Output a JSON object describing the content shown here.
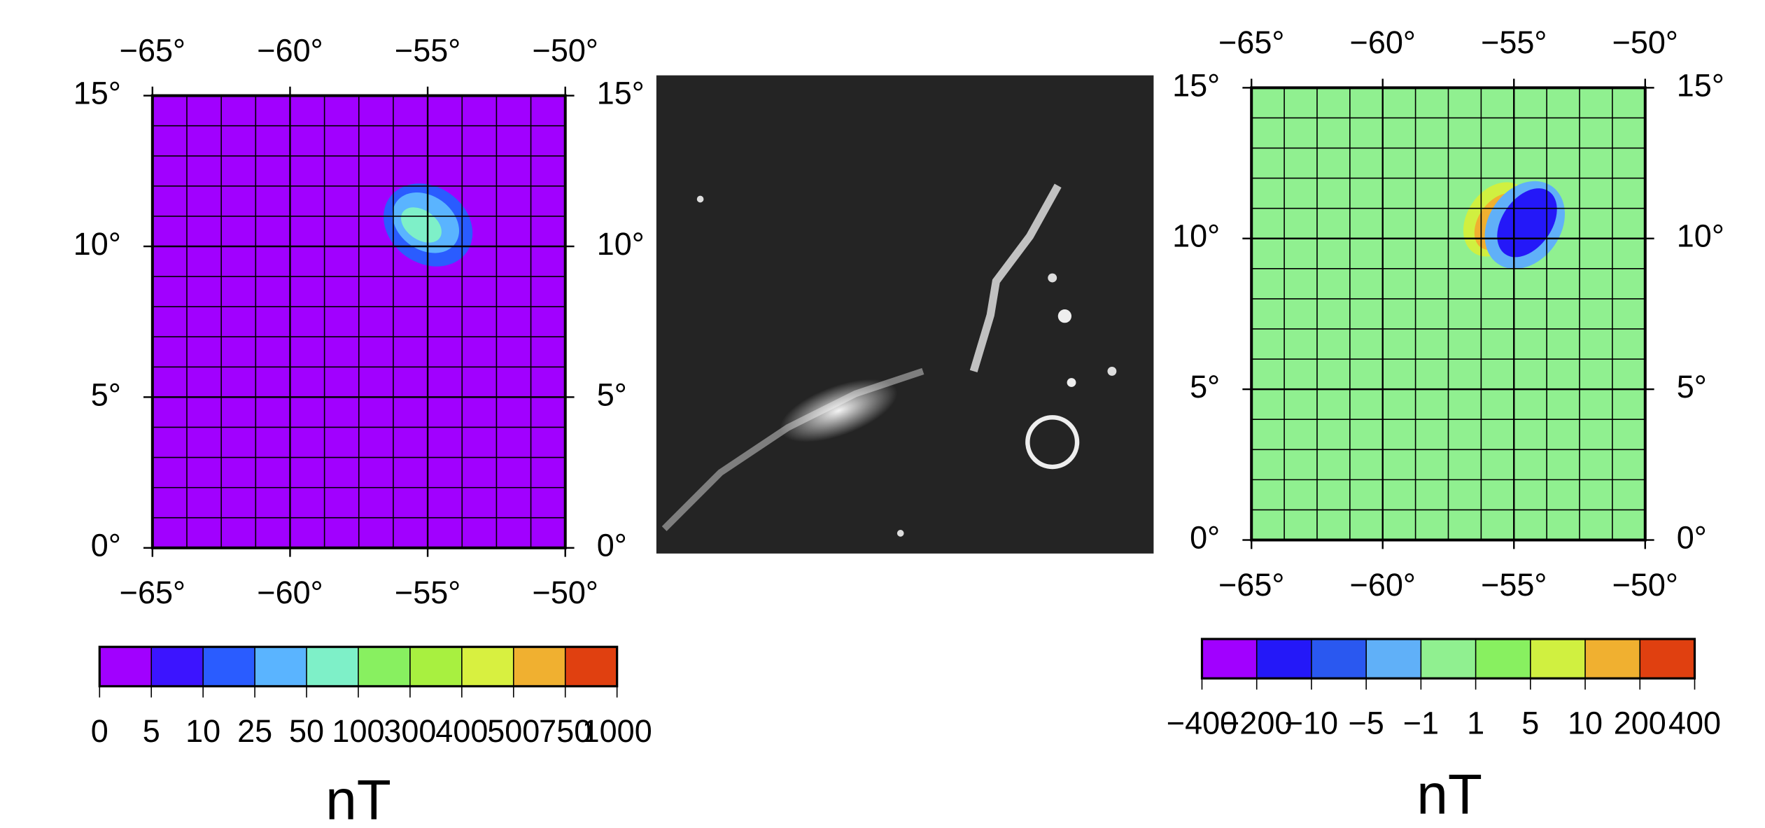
{
  "chart_data": [
    {
      "type": "map",
      "xlim": [
        -65,
        -50
      ],
      "ylim": [
        0,
        15
      ],
      "xticks": [
        {
          "value": -65,
          "label": "−65°"
        },
        {
          "value": -60,
          "label": "−60°"
        },
        {
          "value": -55,
          "label": "−55°"
        },
        {
          "value": -50,
          "label": "−50°"
        }
      ],
      "yticks": [
        {
          "value": 0,
          "label": "0°"
        },
        {
          "value": 5,
          "label": "5°"
        },
        {
          "value": 10,
          "label": "10°"
        },
        {
          "value": 15,
          "label": "15°"
        }
      ],
      "colorbar": {
        "label": "nT",
        "ticks": [
          0,
          5,
          10,
          25,
          50,
          100,
          300,
          400,
          500,
          750,
          1000
        ],
        "colors": [
          "#a100ff",
          "#3c14ff",
          "#2a5cff",
          "#5ab4ff",
          "#7ef0c8",
          "#88f060",
          "#a8f040",
          "#d8f040",
          "#f0b030",
          "#e04010"
        ]
      }
    },
    {
      "type": "map",
      "xlim": [
        -65,
        -50
      ],
      "ylim": [
        0,
        15
      ],
      "xticks": [
        {
          "value": -65,
          "label": "−65°"
        },
        {
          "value": -60,
          "label": "−60°"
        },
        {
          "value": -55,
          "label": "−55°"
        },
        {
          "value": -50,
          "label": "−50°"
        }
      ],
      "yticks": [
        {
          "value": 0,
          "label": "0°"
        },
        {
          "value": 5,
          "label": "5°"
        },
        {
          "value": 10,
          "label": "10°"
        },
        {
          "value": 15,
          "label": "15°"
        }
      ],
      "colorbar": {
        "label": "nT",
        "ticks": [
          {
            "value": -400,
            "label": "−400"
          },
          {
            "value": -200,
            "label": "−200"
          },
          {
            "value": -10,
            "label": "−10"
          },
          {
            "value": -5,
            "label": "−5"
          },
          {
            "value": -1,
            "label": "−1"
          },
          1,
          5,
          10,
          200,
          400
        ],
        "colors": [
          "#a100ff",
          "#2418f8",
          "#2a58f0",
          "#60b0f8",
          "#90f090",
          "#88f060",
          "#d0f040",
          "#f0b030",
          "#e04010"
        ]
      }
    }
  ]
}
